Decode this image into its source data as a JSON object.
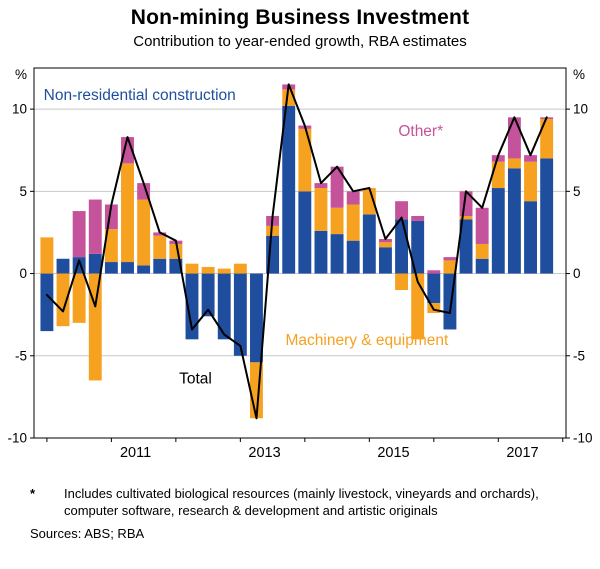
{
  "title": "Non-mining Business Investment",
  "subtitle": "Contribution to year-ended growth, RBA estimates",
  "footnote": {
    "marker": "*",
    "text": "Includes cultivated biological resources (mainly livestock, vineyards and orchards), computer software, research & development and artistic originals"
  },
  "sources": "Sources: ABS; RBA",
  "chart_data": {
    "type": "bar",
    "stacked": true,
    "x_start": 2010.0,
    "x_step": 0.25,
    "x_tick_label_years": [
      2011,
      2013,
      2015,
      2017
    ],
    "x_axis_tick_years": [
      2010,
      2011,
      2012,
      2013,
      2014,
      2015,
      2016,
      2017,
      2018
    ],
    "ylim": [
      -10,
      12.5
    ],
    "yticks": [
      -10,
      -5,
      0,
      5,
      10
    ],
    "y_unit": "%",
    "grid": true,
    "series": [
      {
        "name": "Non-residential construction",
        "color": "#1F4E9E",
        "values": [
          -3.5,
          0.9,
          1.0,
          1.2,
          0.7,
          0.7,
          0.5,
          0.9,
          0.9,
          -4.0,
          -2.6,
          -4.0,
          -5.0,
          -5.4,
          2.3,
          10.2,
          5.0,
          2.6,
          2.4,
          2.0,
          3.6,
          1.6,
          3.3,
          3.2,
          -1.8,
          -3.4,
          3.3,
          0.9,
          5.2,
          6.4,
          4.4,
          7.0
        ]
      },
      {
        "name": "Machinery & equipment",
        "color": "#F6A120",
        "values": [
          2.2,
          -3.2,
          -3.0,
          -6.5,
          2.0,
          6.0,
          4.0,
          1.4,
          0.9,
          0.6,
          0.4,
          0.3,
          0.6,
          -3.4,
          0.6,
          1.0,
          3.8,
          2.6,
          1.6,
          2.2,
          1.6,
          0.3,
          -1.0,
          -4.0,
          -0.6,
          0.8,
          0.2,
          0.9,
          1.6,
          0.6,
          2.4,
          2.4
        ]
      },
      {
        "name": "Other*",
        "color": "#C4539C",
        "values": [
          0.0,
          0.0,
          2.8,
          3.3,
          1.5,
          1.6,
          1.0,
          0.2,
          0.2,
          0.0,
          0.0,
          0.0,
          0.0,
          0.0,
          0.6,
          0.3,
          0.2,
          0.3,
          2.5,
          0.8,
          0.0,
          0.2,
          1.1,
          0.3,
          0.2,
          0.2,
          1.5,
          2.2,
          0.4,
          2.5,
          0.4,
          0.1
        ]
      }
    ],
    "total": {
      "name": "Total",
      "color": "#000000",
      "values": [
        -1.3,
        -2.3,
        0.8,
        -2.0,
        4.2,
        8.3,
        5.5,
        2.5,
        2.0,
        -3.4,
        -2.2,
        -3.7,
        -4.4,
        -8.8,
        3.5,
        11.5,
        9.0,
        5.5,
        6.5,
        5.0,
        5.2,
        2.1,
        3.4,
        -0.5,
        -2.2,
        -2.4,
        5.0,
        4.0,
        7.2,
        9.5,
        7.2,
        9.5
      ]
    },
    "annotations": [
      {
        "text": "Non-residential construction",
        "x": 2009.95,
        "y": 10.55,
        "color": "#1F4E9E",
        "size": 15.5,
        "anchor": "start"
      },
      {
        "text": "Other*",
        "x": 2015.45,
        "y": 8.35,
        "color": "#C4539C",
        "size": 15.5,
        "anchor": "start"
      },
      {
        "text": "Machinery & equipment",
        "x": 2013.7,
        "y": -4.35,
        "color": "#F6A120",
        "size": 15.5,
        "anchor": "start"
      },
      {
        "text": "Total",
        "x": 2012.05,
        "y": -6.7,
        "color": "#000000",
        "size": 15.5,
        "anchor": "start"
      }
    ],
    "colors": {
      "grid": "#C8C8C8",
      "frame": "#000000",
      "background": "#FFFFFF"
    }
  }
}
